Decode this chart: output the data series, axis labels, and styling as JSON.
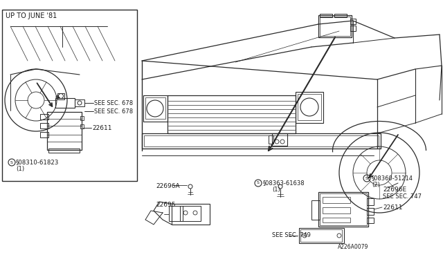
{
  "bg_color": "#ffffff",
  "line_color": "#2a2a2a",
  "text_color": "#1a1a1a",
  "fig_width": 6.4,
  "fig_height": 3.72,
  "dpi": 100,
  "labels": {
    "up_to_june": "UP TO JUNE '81",
    "see_sec_678_1": "SEE SEC. 678",
    "see_sec_678_2": "SEE SEC. 678",
    "part_22611_left": "22611",
    "screw_left_num": "§08310-61823",
    "screw_left_qty": "(1)",
    "see_sec_747": "SEE SEC. 747",
    "part_22696E": "22696E",
    "screw_right_num": "§08360-51214",
    "screw_right_qty": "(2)",
    "part_22696A": "22696A",
    "part_22695": "22695",
    "screw_mid_num": "§08363-61638",
    "screw_mid_qty": "(1)",
    "see_sec_749": "SEE SEC. 749",
    "part_22611_right": "22611",
    "fig_code": "A226A0079"
  }
}
